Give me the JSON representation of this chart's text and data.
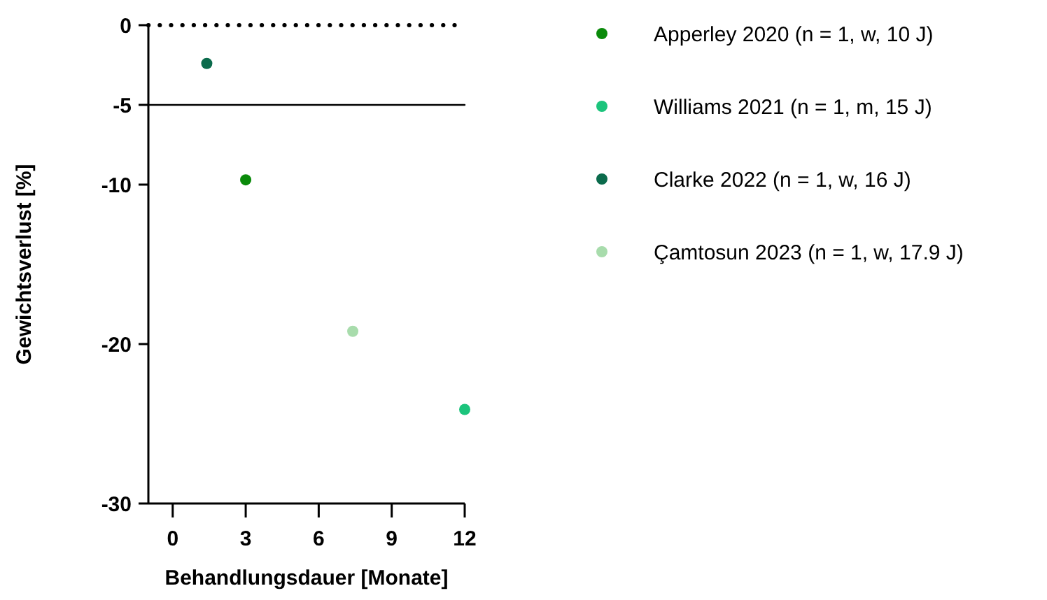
{
  "chart_data": {
    "type": "scatter",
    "xlabel": "Behandlungsdauer [Monate]",
    "ylabel": "Gewichtsverlust [%]",
    "xlim": [
      -1,
      12
    ],
    "xticks": [
      0,
      3,
      6,
      9,
      12
    ],
    "ylim": [
      -30,
      0
    ],
    "yticks": [
      0,
      -5,
      -10,
      -20,
      -30
    ],
    "series": [
      {
        "name": "Apperley 2020 (n = 1, w, 10 J)",
        "color": "#0a8a0a",
        "x": [
          3
        ],
        "values": [
          -9.7
        ]
      },
      {
        "name": "Williams 2021 (n  = 1, m, 15 J)",
        "color": "#1cc47c",
        "x": [
          12
        ],
        "values": [
          -24.1
        ]
      },
      {
        "name": "Clarke 2022 (n = 1, w, 16 J)",
        "color": "#0b6b4c",
        "x": [
          1.4
        ],
        "values": [
          -2.4
        ]
      },
      {
        "name": "Çamtosun 2023 (n = 1, w, 17.9 J)",
        "color": "#a8dcac",
        "x": [
          7.4
        ],
        "values": [
          -19.2
        ]
      }
    ],
    "ref_lines": [
      {
        "axis": "y",
        "value": 0,
        "line_style": "dotted"
      },
      {
        "axis": "y",
        "value": -5,
        "line_style": "solid"
      }
    ],
    "legend": "right",
    "marker": "circle",
    "grid": false
  }
}
